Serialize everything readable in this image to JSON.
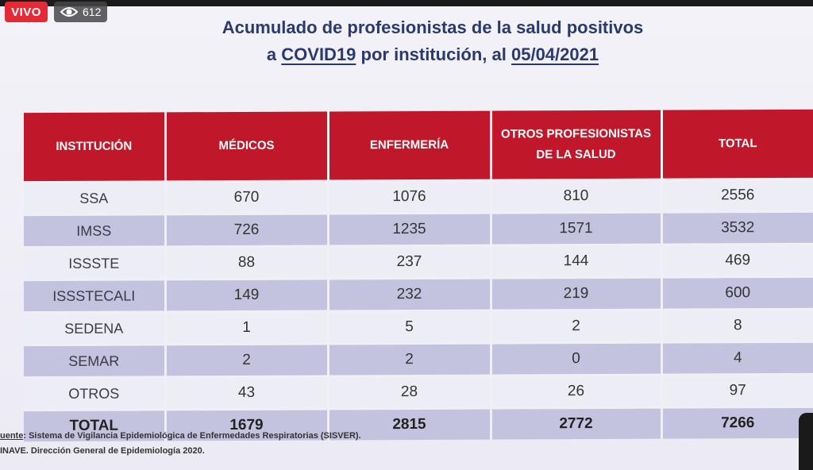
{
  "live": {
    "badge": "VIVO",
    "viewers": "612"
  },
  "slide": {
    "title_line1": "Acumulado de profesionistas de la salud positivos",
    "title_line2_prefix": "a ",
    "title_line2_covid": "COVID19",
    "title_line2_mid": " por institución, al ",
    "title_line2_date": "05/04/2021",
    "headers": [
      "INSTITUCIÓN",
      "MÉDICOS",
      "ENFERMERÍA",
      "OTROS PROFESIONISTAS DE LA SALUD",
      "TOTAL"
    ],
    "rows": [
      [
        "SSA",
        "670",
        "1076",
        "810",
        "2556"
      ],
      [
        "IMSS",
        "726",
        "1235",
        "1571",
        "3532"
      ],
      [
        "ISSSTE",
        "88",
        "237",
        "144",
        "469"
      ],
      [
        "ISSSTECALI",
        "149",
        "232",
        "219",
        "600"
      ],
      [
        "SEDENA",
        "1",
        "5",
        "2",
        "8"
      ],
      [
        "SEMAR",
        "2",
        "2",
        "0",
        "4"
      ],
      [
        "OTROS",
        "43",
        "28",
        "26",
        "97"
      ]
    ],
    "total": [
      "TOTAL",
      "1679",
      "2815",
      "2772",
      "7266"
    ],
    "source_label": "uente",
    "source_line1": ": Sistema de Vigilancia Epidemiológica de Enfermedades Respiratorias (SISVER).",
    "source_line2": "INAVE. Dirección General de Epidemiología 2020."
  },
  "colors": {
    "header_red": "#c0182a",
    "title_blue": "#2a3a70",
    "live_red": "#e52a37",
    "row_dark": "#c4c3df",
    "row_light": "#ededf6"
  }
}
